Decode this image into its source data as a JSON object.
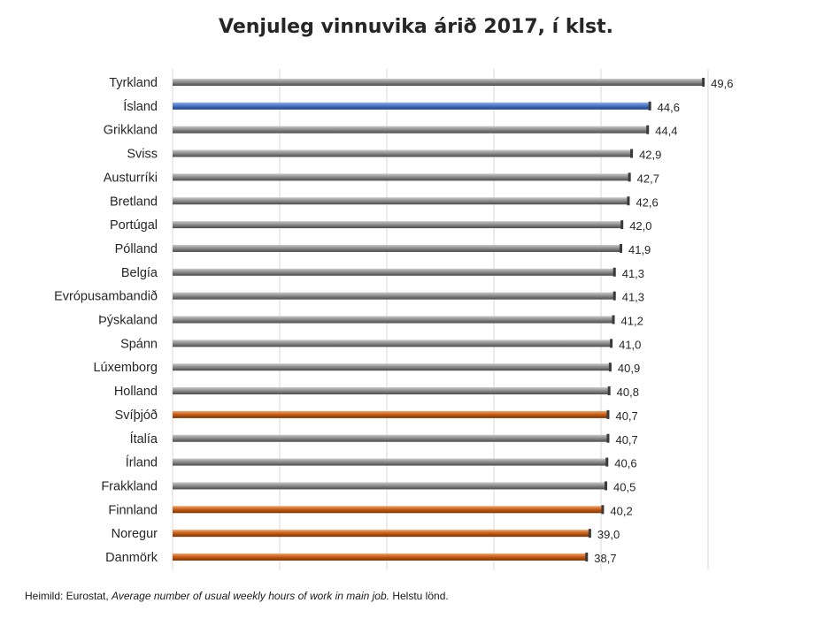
{
  "chart_data": {
    "type": "bar",
    "orientation": "horizontal",
    "title": "Venjuleg vinnuvika árið 2017, í klst.",
    "categories": [
      "Tyrkland",
      "Ísland",
      "Grikkland",
      "Sviss",
      "Austurríki",
      "Bretland",
      "Portúgal",
      "Pólland",
      "Belgía",
      "Evrópusambandið",
      "Þýskaland",
      "Spánn",
      "Lúxemborg",
      "Holland",
      "Svíþjóð",
      "Ítalía",
      "Írland",
      "Frakkland",
      "Finnland",
      "Noregur",
      "Danmörk"
    ],
    "values": [
      49.6,
      44.6,
      44.4,
      42.9,
      42.7,
      42.6,
      42.0,
      41.9,
      41.3,
      41.3,
      41.2,
      41.0,
      40.9,
      40.8,
      40.7,
      40.7,
      40.6,
      40.5,
      40.2,
      39.0,
      38.7
    ],
    "value_labels": [
      "49,6",
      "44,6",
      "44,4",
      "42,9",
      "42,7",
      "42,6",
      "42,0",
      "41,9",
      "41,3",
      "41,3",
      "41,2",
      "41,0",
      "40,9",
      "40,8",
      "40,7",
      "40,7",
      "40,6",
      "40,5",
      "40,2",
      "39,0",
      "38,7"
    ],
    "bar_groups": [
      "other",
      "iceland",
      "other",
      "other",
      "other",
      "other",
      "other",
      "other",
      "other",
      "other",
      "other",
      "other",
      "other",
      "other",
      "nordic",
      "other",
      "other",
      "other",
      "nordic",
      "nordic",
      "nordic"
    ],
    "colors": {
      "iceland": "#4472c4",
      "nordic": "#c55a11",
      "other": "#8c8c8c",
      "grid": "#d9d9d9"
    },
    "xlim": [
      0,
      50
    ],
    "grid": true,
    "legend": "none"
  },
  "source": {
    "prefix": "Heimild: Eurostat, ",
    "italic": "Average number of usual weekly hours of work in main job.",
    "suffix": " Helstu lönd."
  }
}
